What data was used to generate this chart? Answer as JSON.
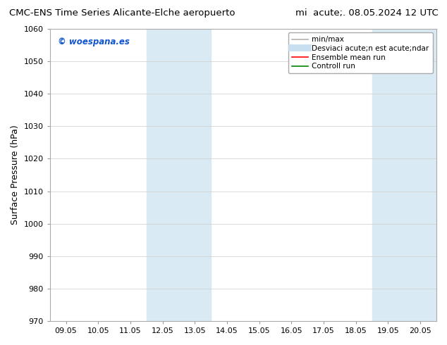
{
  "title_left": "CMC-ENS Time Series Alicante-Elche aeropuerto",
  "title_right": "mi  acute;. 08.05.2024 12 UTC",
  "ylabel": "Surface Pressure (hPa)",
  "ylim": [
    970,
    1060
  ],
  "yticks": [
    970,
    980,
    990,
    1000,
    1010,
    1020,
    1030,
    1040,
    1050,
    1060
  ],
  "xtick_labels": [
    "09.05",
    "10.05",
    "11.05",
    "12.05",
    "13.05",
    "14.05",
    "15.05",
    "16.05",
    "17.05",
    "18.05",
    "19.05",
    "20.05"
  ],
  "xtick_positions": [
    0,
    1,
    2,
    3,
    4,
    5,
    6,
    7,
    8,
    9,
    10,
    11
  ],
  "xlim": [
    -0.5,
    11.5
  ],
  "shaded_regions": [
    {
      "xstart": 2.5,
      "xend": 4.5,
      "color": "#daeaf5"
    },
    {
      "xstart": 9.5,
      "xend": 11.5,
      "color": "#daeaf5"
    }
  ],
  "watermark": "© woespana.es",
  "watermark_color": "#1155cc",
  "legend_label_1": "min/max",
  "legend_label_2": "Desviaci acute;n est acute;ndar",
  "legend_label_3": "Ensemble mean run",
  "legend_label_4": "Controll run",
  "legend_color_1": "#b0b0b0",
  "legend_color_2": "#c8dff0",
  "legend_color_3": "#ff0000",
  "legend_color_4": "#008800",
  "bg_color": "#ffffff",
  "grid_color": "#cccccc",
  "title_fontsize": 9.5,
  "tick_fontsize": 8,
  "ylabel_fontsize": 9
}
